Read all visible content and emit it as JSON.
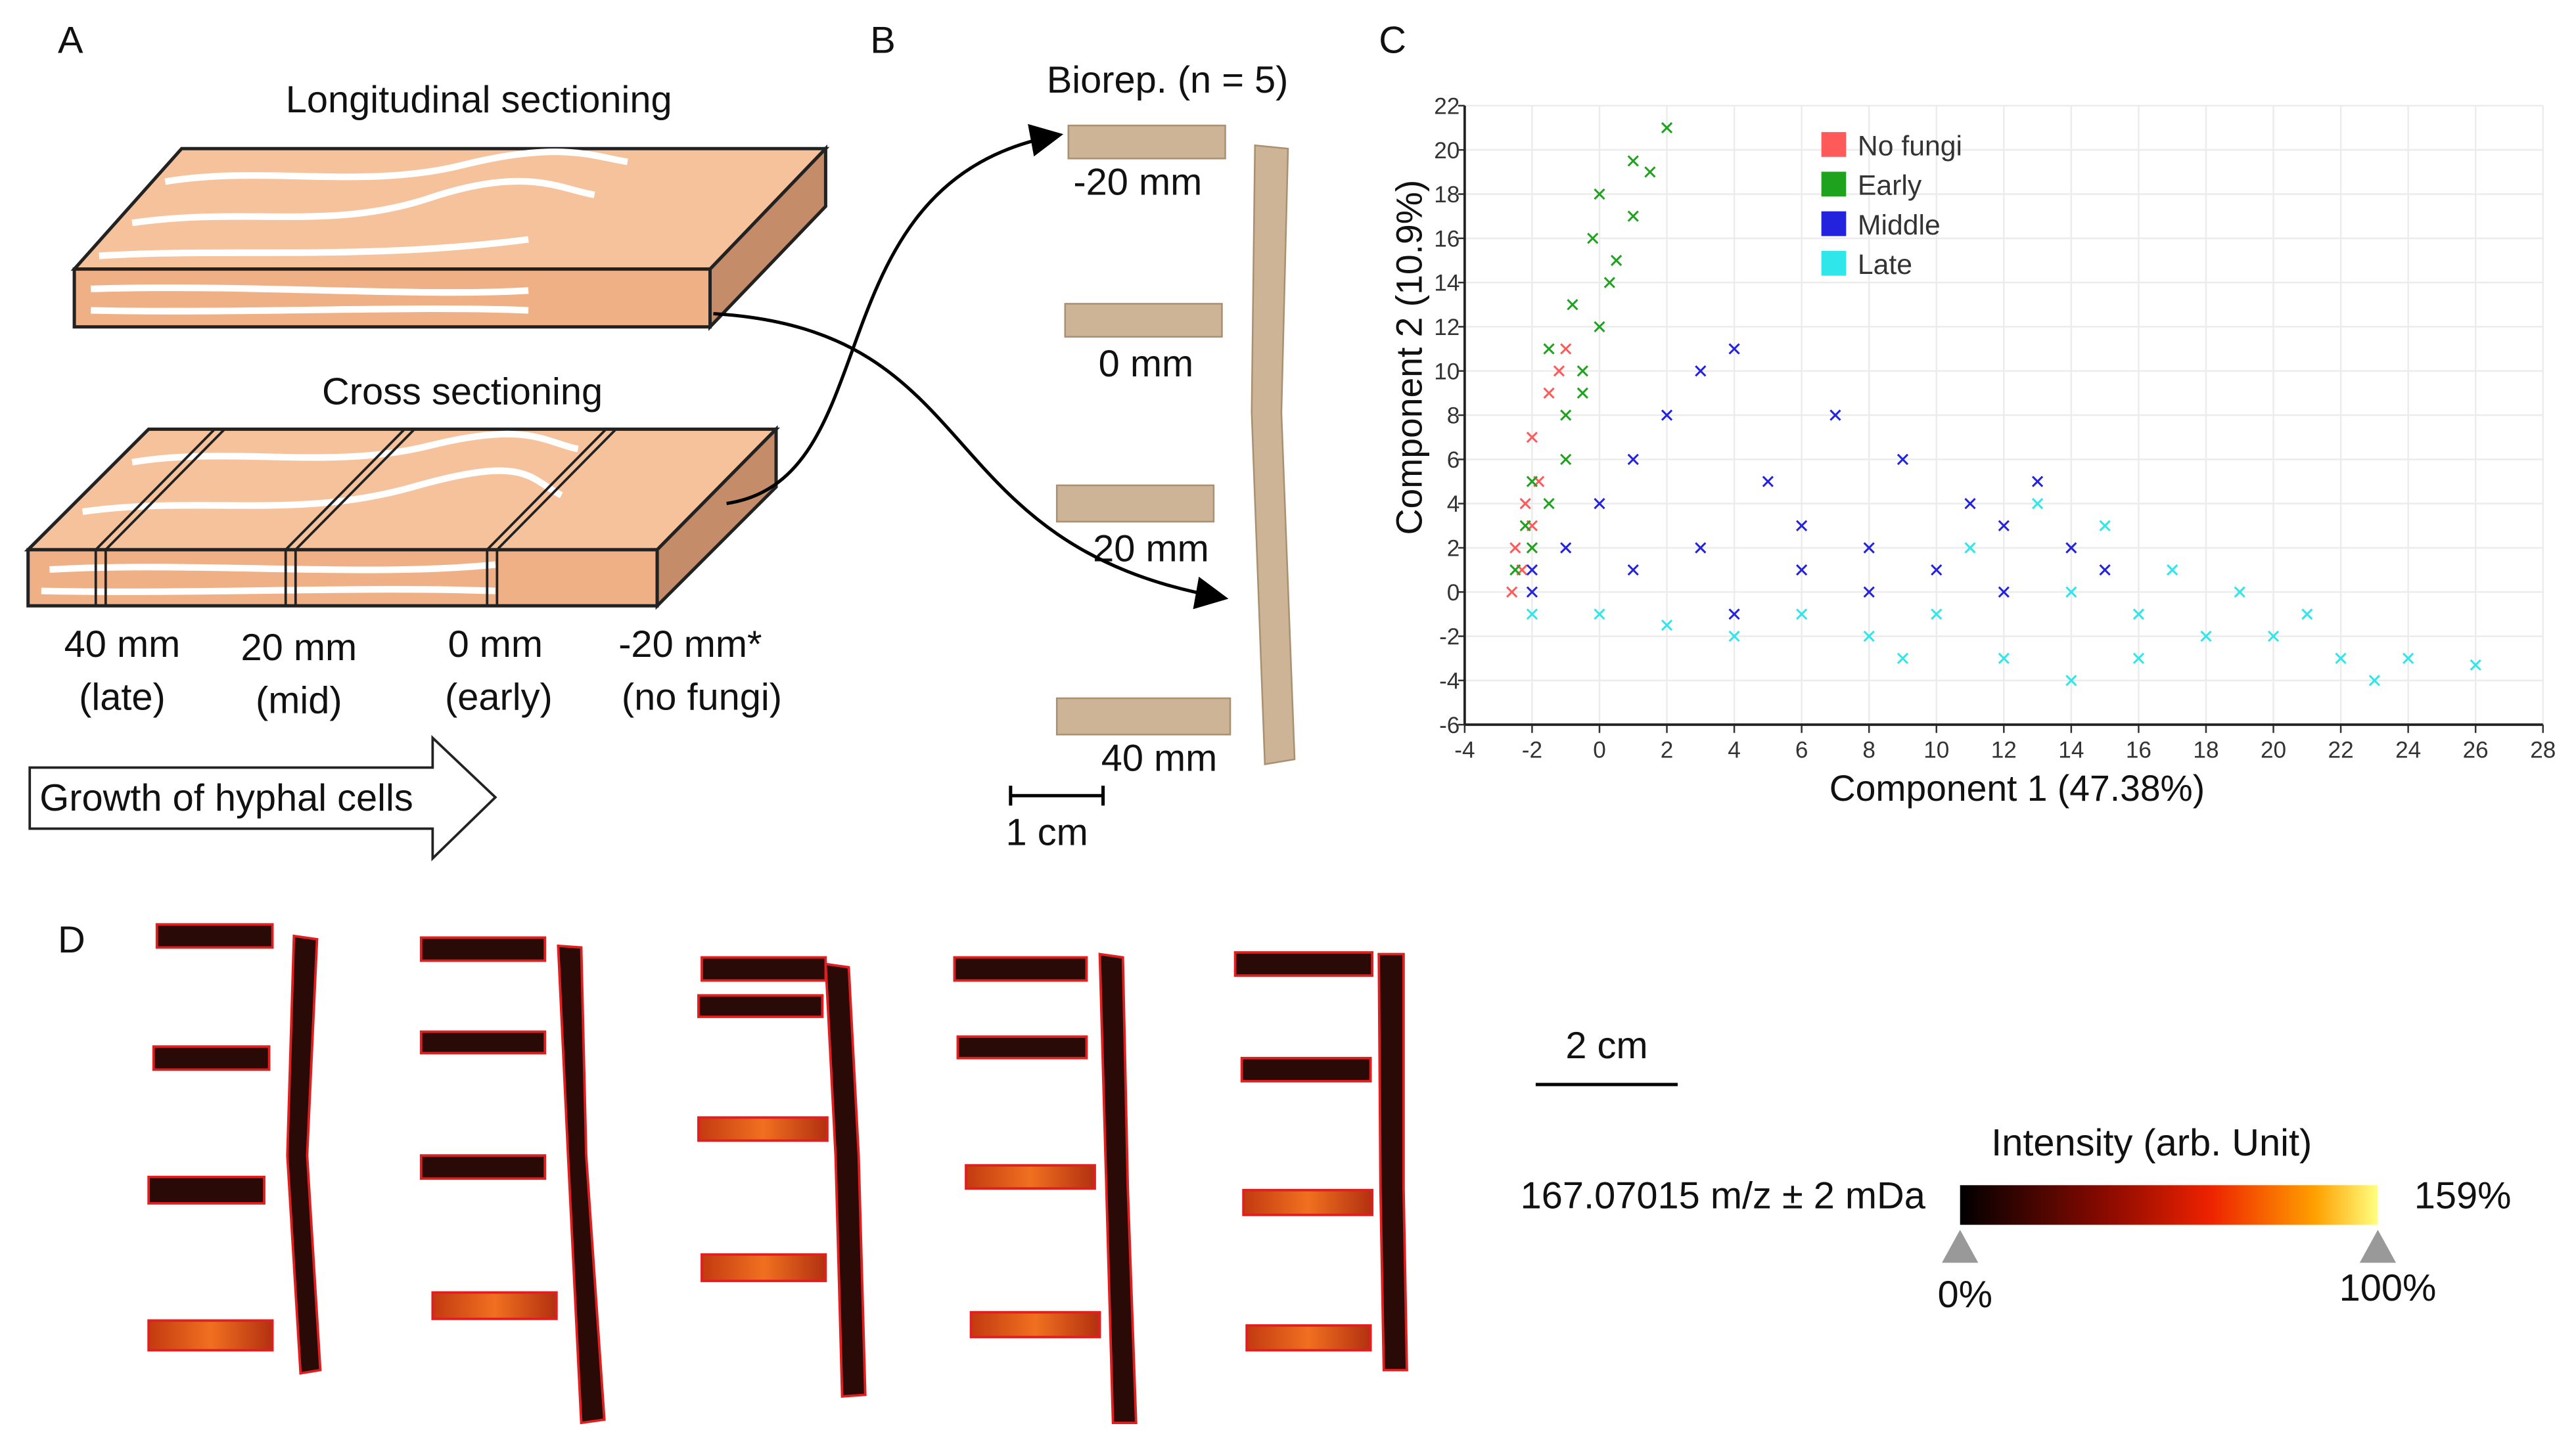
{
  "panels": {
    "a": {
      "label": "A",
      "longitudinal": "Longitudinal sectioning",
      "cross": "Cross sectioning",
      "positions": [
        {
          "distance": "40 mm",
          "stage": "(late)"
        },
        {
          "distance": "20 mm",
          "stage": "(mid)"
        },
        {
          "distance": "0 mm",
          "stage": "(early)"
        },
        {
          "distance": "-20 mm*",
          "stage": "(no fungi)"
        }
      ],
      "arrow": "Growth of hyphal cells"
    },
    "b": {
      "label": "B",
      "title": "Biorep. (n = 5)",
      "sections": [
        "-20 mm",
        "0 mm",
        "20 mm",
        "40 mm"
      ],
      "scale": "1 cm"
    },
    "c": {
      "label": "C"
    },
    "d": {
      "label": "D",
      "scale": "2 cm",
      "mz": "167.07015 m/z ± 2 mDa",
      "intensity": "Intensity (arb. Unit)",
      "max": "159%",
      "low": "0%",
      "high": "100%"
    }
  },
  "chart_data": {
    "type": "scatter",
    "x_label": "Component 1 (47.38%)",
    "y_label": "Component 2 (10.9%)",
    "xlim": [
      -4,
      28
    ],
    "ylim": [
      -6,
      22
    ],
    "xticks": [
      -4,
      -2,
      0,
      2,
      4,
      6,
      8,
      10,
      12,
      14,
      16,
      18,
      20,
      22,
      24,
      26,
      28
    ],
    "yticks": [
      -6,
      -4,
      -2,
      0,
      2,
      4,
      6,
      8,
      10,
      12,
      14,
      16,
      18,
      20,
      22
    ],
    "grid": true,
    "legend": "top",
    "series": [
      {
        "name": "No fungi",
        "color": "#ff5a5a",
        "x": [
          -2.5,
          -2.2,
          -2,
          -1.5,
          -1.2,
          -2.3,
          -1.8,
          -2.6,
          -1,
          -2
        ],
        "values": [
          2,
          4,
          7,
          9,
          10,
          1,
          5,
          0,
          11,
          3
        ]
      },
      {
        "name": "Early",
        "color": "#1fa31f",
        "x": [
          -2,
          -1.5,
          -1,
          -0.5,
          0,
          0.5,
          1,
          1.5,
          2,
          -1,
          -2.5,
          -2,
          -0.8,
          0,
          -0.2,
          1,
          -1.5,
          -2.2,
          0.3,
          -0.5
        ],
        "values": [
          2,
          4,
          6,
          9,
          12,
          15,
          17,
          19,
          21,
          8,
          1,
          5,
          13,
          18,
          16,
          19.5,
          11,
          3,
          14,
          10
        ]
      },
      {
        "name": "Middle",
        "color": "#2323dd",
        "x": [
          -2,
          -1,
          0,
          1,
          2,
          3,
          4,
          5,
          6,
          8,
          10,
          12,
          14,
          11,
          9,
          7,
          13,
          6,
          3,
          1,
          -2,
          4,
          8,
          15,
          12
        ],
        "values": [
          0,
          2,
          4,
          6,
          8,
          10,
          11,
          5,
          3,
          2,
          1,
          0,
          2,
          4,
          6,
          8,
          5,
          1,
          2,
          1,
          1,
          -1,
          0,
          1,
          3
        ]
      },
      {
        "name": "Late",
        "color": "#2fe6ea",
        "x": [
          -2,
          0,
          2,
          4,
          6,
          8,
          10,
          12,
          14,
          16,
          18,
          20,
          22,
          24,
          26,
          11,
          13,
          15,
          17,
          19,
          21,
          9,
          14,
          23,
          16
        ],
        "values": [
          -1,
          -1,
          -1.5,
          -2,
          -1,
          -2,
          -1,
          -3,
          0,
          -1,
          -2,
          -2,
          -3,
          -3,
          -3.3,
          2,
          4,
          3,
          1,
          0,
          -1,
          -3,
          -4,
          -4,
          -3
        ]
      }
    ]
  }
}
